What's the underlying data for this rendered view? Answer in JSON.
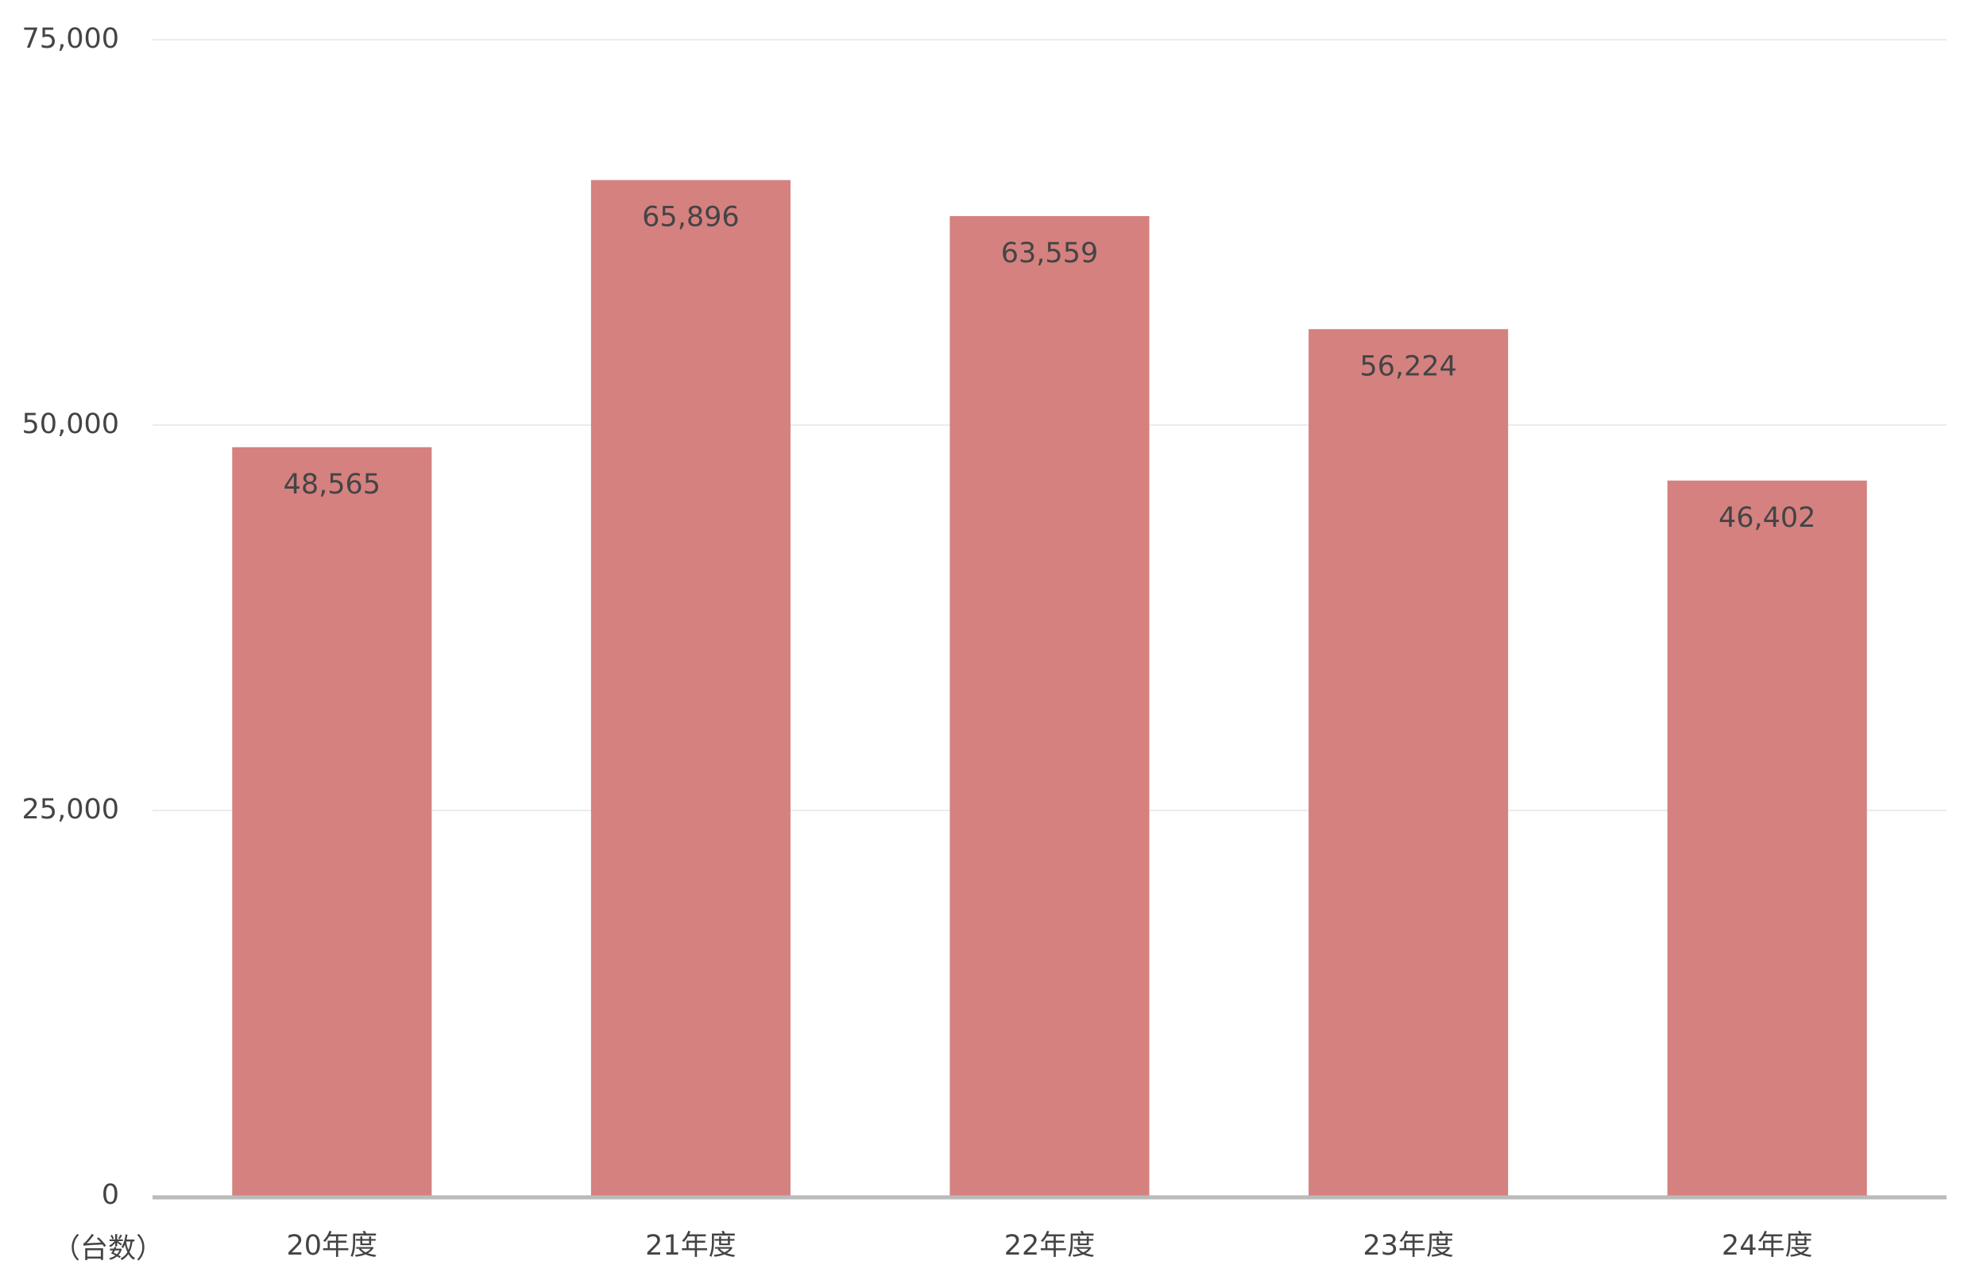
{
  "chart_data": {
    "type": "bar",
    "y_axis_label": "（台数）",
    "categories": [
      "20年度",
      "21年度",
      "22年度",
      "23年度",
      "24年度"
    ],
    "values": [
      48565,
      65896,
      63559,
      56224,
      46402
    ],
    "value_labels": [
      "48,565",
      "65,896",
      "63,559",
      "56,224",
      "46,402"
    ],
    "color": "#d48180",
    "ylim": [
      0,
      75000
    ],
    "yticks": [
      {
        "value": 0,
        "label": "0"
      },
      {
        "value": 25000,
        "label": "25,000"
      },
      {
        "value": 50000,
        "label": "50,000"
      },
      {
        "value": 75000,
        "label": "75,000"
      }
    ],
    "grid": true
  }
}
